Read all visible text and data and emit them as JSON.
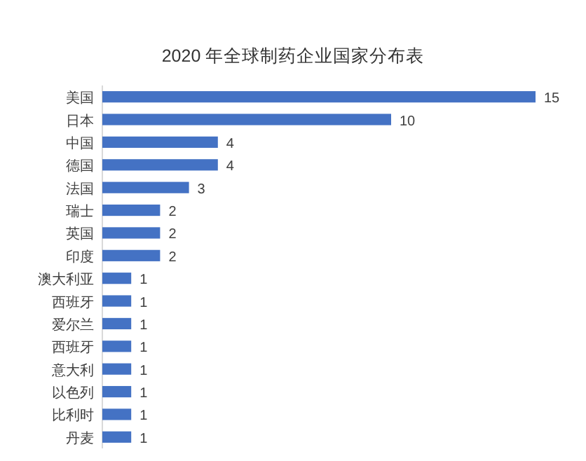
{
  "chart_data": {
    "type": "bar",
    "orientation": "horizontal",
    "title": "2020 年全球制药企业国家分布表",
    "categories": [
      "美国",
      "日本",
      "中国",
      "德国",
      "法国",
      "瑞士",
      "英国",
      "印度",
      "澳大利亚",
      "西班牙",
      "爱尔兰",
      "西班牙",
      "意大利",
      "以色列",
      "比利时",
      "丹麦"
    ],
    "values": [
      15,
      10,
      4,
      4,
      3,
      2,
      2,
      2,
      1,
      1,
      1,
      1,
      1,
      1,
      1,
      1
    ],
    "color": "#4472c4",
    "data_labels": true
  }
}
